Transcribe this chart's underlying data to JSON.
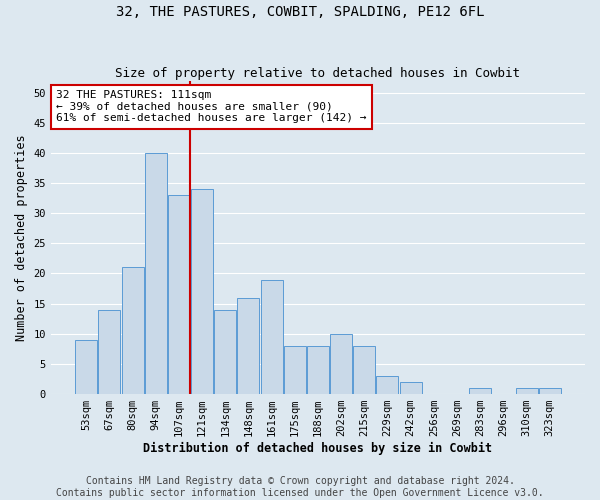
{
  "title": "32, THE PASTURES, COWBIT, SPALDING, PE12 6FL",
  "subtitle": "Size of property relative to detached houses in Cowbit",
  "xlabel": "Distribution of detached houses by size in Cowbit",
  "ylabel": "Number of detached properties",
  "bar_labels": [
    "53sqm",
    "67sqm",
    "80sqm",
    "94sqm",
    "107sqm",
    "121sqm",
    "134sqm",
    "148sqm",
    "161sqm",
    "175sqm",
    "188sqm",
    "202sqm",
    "215sqm",
    "229sqm",
    "242sqm",
    "256sqm",
    "269sqm",
    "283sqm",
    "296sqm",
    "310sqm",
    "323sqm"
  ],
  "bar_values": [
    9,
    14,
    21,
    40,
    33,
    34,
    14,
    16,
    19,
    8,
    8,
    10,
    8,
    3,
    2,
    0,
    0,
    1,
    0,
    1,
    1
  ],
  "bar_color": "#c9d9e8",
  "bar_edge_color": "#5b9bd5",
  "ylim": [
    0,
    52
  ],
  "yticks": [
    0,
    5,
    10,
    15,
    20,
    25,
    30,
    35,
    40,
    45,
    50
  ],
  "vline_x_index": 4.5,
  "vline_color": "#cc0000",
  "annotation_text": "32 THE PASTURES: 111sqm\n← 39% of detached houses are smaller (90)\n61% of semi-detached houses are larger (142) →",
  "annotation_box_color": "#ffffff",
  "annotation_box_edgecolor": "#cc0000",
  "footer_line1": "Contains HM Land Registry data © Crown copyright and database right 2024.",
  "footer_line2": "Contains public sector information licensed under the Open Government Licence v3.0.",
  "background_color": "#dde8f0",
  "grid_color": "#ffffff",
  "title_fontsize": 10,
  "subtitle_fontsize": 9,
  "axis_label_fontsize": 8.5,
  "tick_fontsize": 7.5,
  "annotation_fontsize": 8,
  "footer_fontsize": 7
}
